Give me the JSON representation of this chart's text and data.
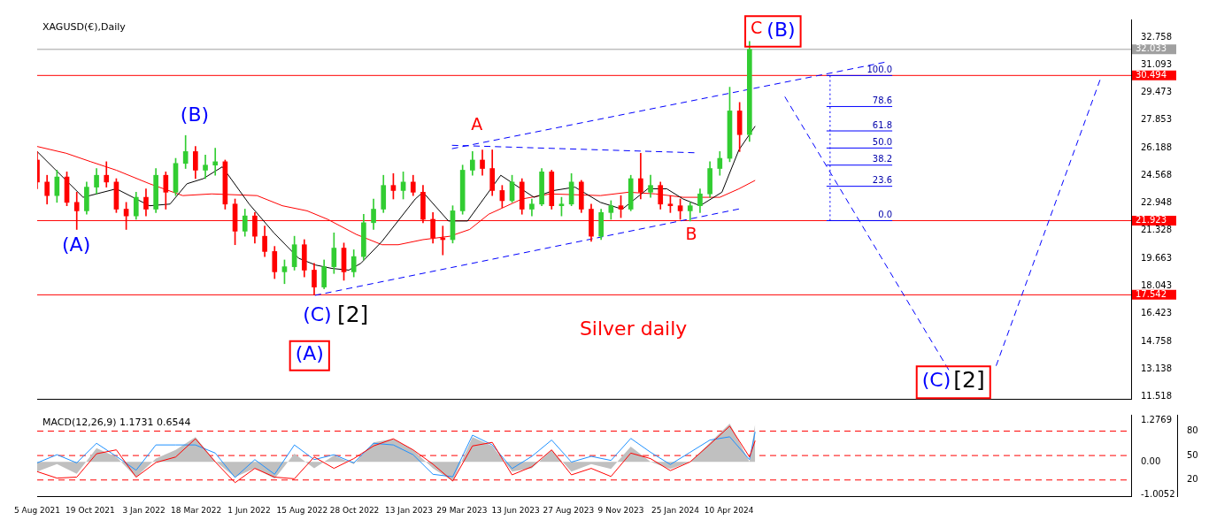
{
  "chart_data": [
    {
      "type": "candlestick",
      "title": "XAGUSD(€),Daily",
      "tick_labels": "y",
      "xlim": [
        "2021-08-05",
        "2025-10-31"
      ],
      "ylim": [
        11.4,
        33.8
      ],
      "yticks": [
        32.758,
        31.093,
        29.473,
        27.853,
        26.188,
        24.568,
        22.948,
        21.328,
        19.663,
        18.043,
        16.423,
        14.758,
        13.138,
        11.518
      ],
      "x": [
        "2021-08-05",
        "2021-08-19",
        "2021-09-02",
        "2021-09-16",
        "2021-09-30",
        "2021-10-14",
        "2021-10-28",
        "2021-11-11",
        "2021-11-25",
        "2021-12-09",
        "2021-12-23",
        "2022-01-06",
        "2022-01-20",
        "2022-02-03",
        "2022-02-17",
        "2022-03-03",
        "2022-03-17",
        "2022-03-31",
        "2022-04-14",
        "2022-04-28",
        "2022-05-12",
        "2022-05-26",
        "2022-06-09",
        "2022-06-23",
        "2022-07-07",
        "2022-07-21",
        "2022-08-04",
        "2022-08-18",
        "2022-09-01",
        "2022-09-15",
        "2022-09-29",
        "2022-10-13",
        "2022-10-27",
        "2022-11-10",
        "2022-11-24",
        "2022-12-08",
        "2022-12-22",
        "2023-01-05",
        "2023-01-19",
        "2023-02-02",
        "2023-02-16",
        "2023-03-02",
        "2023-03-16",
        "2023-03-30",
        "2023-04-13",
        "2023-04-27",
        "2023-05-11",
        "2023-05-25",
        "2023-06-08",
        "2023-06-22",
        "2023-07-06",
        "2023-07-20",
        "2023-08-03",
        "2023-08-17",
        "2023-08-31",
        "2023-09-14",
        "2023-09-28",
        "2023-10-12",
        "2023-10-26",
        "2023-11-09",
        "2023-11-23",
        "2023-12-07",
        "2023-12-21",
        "2024-01-04",
        "2024-01-18",
        "2024-02-01",
        "2024-02-15",
        "2024-02-29",
        "2024-03-14",
        "2024-03-28",
        "2024-04-11",
        "2024-04-25",
        "2024-05-09"
      ],
      "ohlc": [
        [
          25.5,
          26,
          23.8,
          24.2
        ],
        [
          24.2,
          24.6,
          22.9,
          23.4
        ],
        [
          23.4,
          24.9,
          23,
          24.5
        ],
        [
          24.5,
          24.8,
          22.8,
          23
        ],
        [
          23,
          23.6,
          21.4,
          22.5
        ],
        [
          22.5,
          24.2,
          22.3,
          23.9
        ],
        [
          23.9,
          25,
          23.5,
          24.6
        ],
        [
          24.6,
          25.4,
          23.9,
          24.2
        ],
        [
          24.2,
          24.4,
          22.4,
          22.6
        ],
        [
          22.6,
          23,
          21.4,
          22.2
        ],
        [
          22.2,
          23.6,
          22,
          23.3
        ],
        [
          23.3,
          23.8,
          22.2,
          22.6
        ],
        [
          22.6,
          25,
          22.4,
          24.6
        ],
        [
          24.6,
          24.8,
          22.6,
          23.6
        ],
        [
          23.6,
          25.6,
          23.4,
          25.3
        ],
        [
          25.3,
          26.95,
          25,
          26
        ],
        [
          26,
          26.3,
          24.4,
          24.9
        ],
        [
          24.9,
          25.8,
          24.4,
          25.2
        ],
        [
          25.2,
          26.2,
          24.6,
          25.4
        ],
        [
          25.4,
          25.5,
          22.6,
          22.9
        ],
        [
          22.9,
          23.2,
          20.5,
          21.3
        ],
        [
          21.3,
          22.6,
          21,
          22.2
        ],
        [
          22.2,
          22.4,
          20.6,
          21
        ],
        [
          21,
          21.6,
          19.8,
          20.1
        ],
        [
          20.1,
          20.4,
          18.5,
          18.9
        ],
        [
          18.9,
          19.6,
          18.2,
          19.2
        ],
        [
          19.2,
          21,
          19,
          20.5
        ],
        [
          20.5,
          20.8,
          18.6,
          19
        ],
        [
          19,
          19.4,
          17.54,
          18
        ],
        [
          18,
          19.6,
          17.9,
          19.2
        ],
        [
          19.2,
          21.2,
          18.8,
          20.3
        ],
        [
          20.3,
          20.6,
          18.4,
          18.9
        ],
        [
          18.9,
          20.2,
          18.6,
          19.8
        ],
        [
          19.8,
          22.3,
          19.6,
          21.8
        ],
        [
          21.8,
          23.2,
          21.4,
          22.6
        ],
        [
          22.6,
          24.6,
          22.4,
          24
        ],
        [
          24,
          24.7,
          23.2,
          23.7
        ],
        [
          23.7,
          24.8,
          23.2,
          24.2
        ],
        [
          24.2,
          24.6,
          23.4,
          23.6
        ],
        [
          23.6,
          24,
          21.8,
          22
        ],
        [
          22,
          22.4,
          20.6,
          20.9
        ],
        [
          20.9,
          21.6,
          19.9,
          20.8
        ],
        [
          20.8,
          22.8,
          20.6,
          22.5
        ],
        [
          22.5,
          25.2,
          22.3,
          24.9
        ],
        [
          24.9,
          26,
          24.6,
          25.5
        ],
        [
          25.5,
          26.1,
          24.6,
          25
        ],
        [
          25,
          26.1,
          23.4,
          23.7
        ],
        [
          23.7,
          24,
          22.7,
          23.1
        ],
        [
          23.1,
          24.6,
          23,
          24.2
        ],
        [
          24.2,
          24.4,
          22.3,
          22.6
        ],
        [
          22.6,
          23.2,
          22.2,
          22.9
        ],
        [
          22.9,
          25,
          22.8,
          24.8
        ],
        [
          24.8,
          24.9,
          22.6,
          22.8
        ],
        [
          22.8,
          23.3,
          22.2,
          22.9
        ],
        [
          22.9,
          24.7,
          22.8,
          24.2
        ],
        [
          24.2,
          24.3,
          22.4,
          22.6
        ],
        [
          22.6,
          22.9,
          20.7,
          21
        ],
        [
          21,
          22.6,
          20.8,
          22.4
        ],
        [
          22.4,
          23.1,
          22,
          22.8
        ],
        [
          22.8,
          23.4,
          22.1,
          22.6
        ],
        [
          22.6,
          24.6,
          22.5,
          24.4
        ],
        [
          24.4,
          25.9,
          23.2,
          23.6
        ],
        [
          23.6,
          24.6,
          23.3,
          24
        ],
        [
          24,
          24.2,
          22.6,
          22.9
        ],
        [
          22.9,
          23.4,
          22.4,
          22.8
        ],
        [
          22.8,
          23.2,
          22,
          22.5
        ],
        [
          22.5,
          23,
          21.9,
          22.8
        ],
        [
          22.8,
          23.8,
          22.4,
          23.5
        ],
        [
          23.5,
          25.4,
          23.3,
          25
        ],
        [
          25,
          26,
          24.6,
          25.6
        ],
        [
          25.6,
          29.8,
          25.4,
          28.4
        ],
        [
          28.4,
          28.9,
          26,
          27
        ],
        [
          27,
          32.5,
          26.6,
          32.03
        ]
      ],
      "series": [
        {
          "type": "line",
          "color": "#000000",
          "x": [
            "2021-08-05",
            "2021-10-09",
            "2021-11-25",
            "2022-01-11",
            "2022-02-09",
            "2022-03-05",
            "2022-03-28",
            "2022-04-24",
            "2022-06-01",
            "2022-07-06",
            "2022-08-10",
            "2022-09-03",
            "2022-09-26",
            "2022-10-20",
            "2022-11-06",
            "2022-12-06",
            "2023-01-22",
            "2023-02-02",
            "2023-03-10",
            "2023-04-06",
            "2023-05-23",
            "2023-07-09",
            "2023-08-06",
            "2023-09-05",
            "2023-10-11",
            "2023-11-11",
            "2023-12-17",
            "2024-01-13",
            "2024-02-05",
            "2024-02-29",
            "2024-03-31",
            "2024-04-24",
            "2024-05-17"
          ],
          "values": [
            26,
            23.3,
            23.8,
            22.8,
            22.9,
            24.1,
            24.4,
            25.1,
            22.9,
            21.2,
            19.7,
            19.3,
            19.1,
            19,
            19.4,
            20.7,
            23.2,
            23.6,
            21.9,
            21.9,
            24.6,
            23.3,
            23.7,
            23.9,
            23,
            22.6,
            23.8,
            23.8,
            23.2,
            22.8,
            23.6,
            26.1,
            27.5
          ]
        },
        {
          "type": "line",
          "color": "#ff0000",
          "x": [
            "2021-08-05",
            "2021-09-15",
            "2021-10-20",
            "2021-11-25",
            "2022-01-11",
            "2022-02-27",
            "2022-04-09",
            "2022-06-12",
            "2022-07-18",
            "2022-08-22",
            "2022-09-20",
            "2022-10-31",
            "2022-12-06",
            "2022-12-29",
            "2023-02-02",
            "2023-03-12",
            "2023-04-09",
            "2023-05-06",
            "2023-06-22",
            "2023-08-01",
            "2023-10-11",
            "2023-11-20",
            "2023-12-28",
            "2024-02-05",
            "2024-03-28",
            "2024-04-24",
            "2024-05-17"
          ],
          "values": [
            26.3,
            25.9,
            25.4,
            24.9,
            24.1,
            23.4,
            23.5,
            23.4,
            22.8,
            22.5,
            22,
            21.1,
            20.5,
            20.5,
            20.8,
            21,
            21.4,
            22.3,
            23.2,
            23.5,
            23.4,
            23.6,
            23.5,
            23.3,
            23.3,
            23.8,
            24.3
          ]
        },
        {
          "type": "line",
          "color": "#0000ff",
          "line_style": "dashed",
          "x": [
            "2022-09-02",
            "2024-04-24"
          ],
          "values": [
            17.51,
            22.61
          ]
        },
        {
          "type": "line",
          "color": "#0000ff",
          "line_style": "dashed",
          "x": [
            "2023-03-15",
            "2024-11-16"
          ],
          "values": [
            26.17,
            31.27
          ]
        },
        {
          "type": "line",
          "color": "#0000ff",
          "line_style": "dashed",
          "x": [
            "2023-03-15",
            "2024-02-21"
          ],
          "values": [
            26.37,
            25.93
          ]
        },
        {
          "type": "line",
          "color": "#0000ff",
          "line_style": "dashed",
          "x": [
            "2024-06-28",
            "2025-02-15"
          ],
          "values": [
            29.24,
            13.1
          ]
        },
        {
          "type": "line",
          "color": "#0000ff",
          "line_style": "dashed",
          "x": [
            "2025-04-23",
            "2025-09-17"
          ],
          "values": [
            13.35,
            30.23
          ]
        },
        {
          "type": "line",
          "color": "#0000ff",
          "line_style": "dotted",
          "x": [
            "2024-08-31",
            "2024-08-31"
          ],
          "values": [
            21.92,
            30.49
          ]
        },
        {
          "type": "line",
          "color": "#0000ff",
          "x": [
            "2024-08-26",
            "2024-11-27"
          ],
          "values": [
            30.49,
            30.49
          ]
        },
        {
          "type": "line",
          "color": "#0000ff",
          "x": [
            "2024-08-26",
            "2024-11-27"
          ],
          "values": [
            28.66,
            28.66
          ]
        },
        {
          "type": "line",
          "color": "#0000ff",
          "x": [
            "2024-08-26",
            "2024-11-27"
          ],
          "values": [
            27.22,
            27.22
          ]
        },
        {
          "type": "line",
          "color": "#0000ff",
          "x": [
            "2024-08-26",
            "2024-11-27"
          ],
          "values": [
            26.21,
            26.21
          ]
        },
        {
          "type": "line",
          "color": "#0000ff",
          "x": [
            "2024-08-26",
            "2024-11-27"
          ],
          "values": [
            25.2,
            25.2
          ]
        },
        {
          "type": "line",
          "color": "#0000ff",
          "x": [
            "2024-08-26",
            "2024-11-27"
          ],
          "values": [
            23.95,
            23.95
          ]
        },
        {
          "type": "line",
          "color": "#0000ff",
          "x": [
            "2024-08-26",
            "2024-11-27"
          ],
          "values": [
            21.92,
            21.92
          ]
        }
      ],
      "ref_lines": [
        {
          "axis": "y",
          "value": 32.033,
          "label": "32.033",
          "color": "#a0a0a0"
        },
        {
          "axis": "y",
          "value": 30.494,
          "label": "30.494",
          "color": "#ff0000"
        },
        {
          "axis": "y",
          "value": 21.923,
          "label": "21.923",
          "color": "#ff0000"
        },
        {
          "axis": "y",
          "value": 17.542,
          "label": "17.542",
          "color": "#ff0000"
        }
      ],
      "annotations": [
        "(A)",
        "(B)",
        "(C)",
        "[2]",
        "(A)",
        "A",
        "B",
        "C",
        "(B)",
        "Silver daily",
        "(C)",
        "[2]",
        {
          "text": "100.0",
          "x": "2024-11-27",
          "y": 30.49
        },
        {
          "text": "78.6",
          "x": "2024-11-27",
          "y": 28.66
        },
        {
          "text": "61.8",
          "x": "2024-11-27",
          "y": 27.22
        },
        {
          "text": "50.0",
          "x": "2024-11-27",
          "y": 26.21
        },
        {
          "text": "38.2",
          "x": "2024-11-27",
          "y": 25.2
        },
        {
          "text": "23.6",
          "x": "2024-11-27",
          "y": 23.95
        },
        {
          "text": "0.0",
          "x": "2024-11-27",
          "y": 21.92
        }
      ]
    },
    {
      "type": "line",
      "title": "MACD(12,26,9) 1.1731 0.6544",
      "xlim": [
        "2021-08-05",
        "2025-10-31"
      ],
      "ylim": [
        -1.06,
        1.45
      ],
      "y2lim": [
        0,
        100
      ],
      "xticks": [
        {
          "value": "2021-08-05",
          "label": "5 Aug 2021"
        },
        {
          "value": "2021-10-19",
          "label": "19 Oct 2021"
        },
        {
          "value": "2022-01-03",
          "label": "3 Jan 2022"
        },
        {
          "value": "2022-03-18",
          "label": "18 Mar 2022"
        },
        {
          "value": "2022-06-01",
          "label": "1 Jun 2022"
        },
        {
          "value": "2022-08-15",
          "label": "15 Aug 2022"
        },
        {
          "value": "2022-10-28",
          "label": "28 Oct 2022"
        },
        {
          "value": "2023-01-13",
          "label": "13 Jan 2023"
        },
        {
          "value": "2023-03-29",
          "label": "29 Mar 2023"
        },
        {
          "value": "2023-06-13",
          "label": "13 Jun 2023"
        },
        {
          "value": "2023-08-27",
          "label": "27 Aug 2023"
        },
        {
          "value": "2023-11-09",
          "label": "9 Nov 2023"
        },
        {
          "value": "2024-01-25",
          "label": "25 Jan 2024"
        },
        {
          "value": "2024-04-10",
          "label": "10 Apr 2024"
        }
      ],
      "yticks": [
        -1.0052,
        {
          "value": 0,
          "label": "0.00"
        },
        1.2769
      ],
      "y2ticks": [
        20,
        50,
        80
      ],
      "x": [
        "2021-08-05",
        "2021-09-02",
        "2021-09-30",
        "2021-10-28",
        "2021-11-25",
        "2021-12-23",
        "2022-01-20",
        "2022-02-17",
        "2022-03-17",
        "2022-04-14",
        "2022-05-12",
        "2022-06-09",
        "2022-07-07",
        "2022-08-04",
        "2022-09-01",
        "2022-09-29",
        "2022-10-27",
        "2022-11-24",
        "2022-12-22",
        "2023-01-19",
        "2023-02-16",
        "2023-03-16",
        "2023-04-13",
        "2023-05-11",
        "2023-06-08",
        "2023-07-06",
        "2023-08-03",
        "2023-08-31",
        "2023-09-28",
        "2023-10-26",
        "2023-11-23",
        "2023-12-21",
        "2024-01-18",
        "2024-02-15",
        "2024-03-14",
        "2024-04-11",
        "2024-05-09",
        "2024-05-17"
      ],
      "series": [
        {
          "type": "area",
          "color": "#c0c0c0",
          "values": [
            -0.3,
            -0.07,
            -0.37,
            0.42,
            0.15,
            -0.47,
            0.1,
            0.37,
            0.76,
            0.02,
            -0.47,
            -0.2,
            -0.52,
            0.25,
            -0.2,
            0.2,
            -0.07,
            0.6,
            0.71,
            0.37,
            -0.2,
            -0.59,
            0.76,
            0.49,
            -0.3,
            -0.2,
            0.37,
            -0.3,
            -0.07,
            -0.22,
            0.47,
            0,
            -0.22,
            0,
            0.59,
            1.18,
            0,
            1.17
          ]
        },
        {
          "type": "line",
          "color": "#ff0000",
          "values": [
            -0.3,
            -0.5,
            -0.47,
            0.25,
            0.37,
            -0.47,
            -0.02,
            0.15,
            0.71,
            0,
            -0.64,
            -0.2,
            -0.47,
            -0.52,
            0.15,
            -0.2,
            0.1,
            0.49,
            0.71,
            0.37,
            -0.07,
            -0.59,
            0.49,
            0.6,
            -0.4,
            -0.15,
            0.37,
            -0.4,
            -0.2,
            -0.45,
            0.27,
            0.1,
            -0.27,
            0,
            0.54,
            1.1,
            0.15,
            0.65
          ]
        },
        {
          "type": "line",
          "color": "#1e90ff",
          "axis": "y2",
          "values": [
            41,
            51,
            41,
            65,
            49,
            32,
            63,
            63,
            63,
            53,
            23,
            45,
            27,
            63,
            45,
            51,
            41,
            65,
            63,
            51,
            27,
            24,
            75,
            63,
            34,
            49,
            69,
            42,
            49,
            44,
            71,
            54,
            39,
            54,
            69,
            73,
            45,
            79
          ]
        }
      ],
      "ref_lines": [
        {
          "axis": "y2",
          "value": 80,
          "color": "#ff0000",
          "line_style": "dashed"
        },
        {
          "axis": "y2",
          "value": 50,
          "color": "#ff0000",
          "line_style": "dashed"
        },
        {
          "axis": "y2",
          "value": 20,
          "color": "#ff0000",
          "line_style": "dashed"
        }
      ]
    }
  ]
}
